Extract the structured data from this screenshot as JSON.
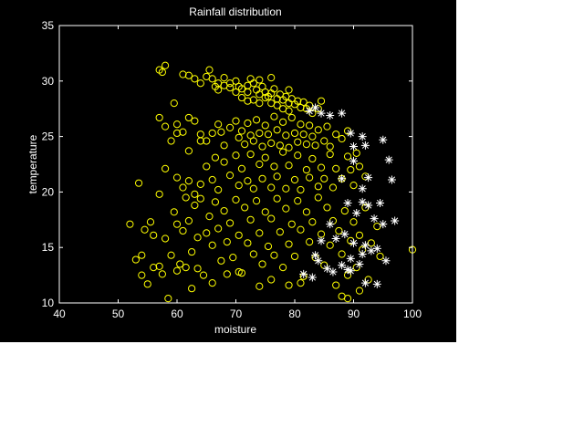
{
  "chart_data": {
    "type": "scatter",
    "title": "Rainfall distribution",
    "xlabel": "moisture",
    "ylabel": "temperature",
    "xlim": [
      40,
      100
    ],
    "ylim": [
      10,
      35
    ],
    "xticks": [
      40,
      50,
      60,
      70,
      80,
      90,
      100
    ],
    "yticks": [
      10,
      15,
      20,
      25,
      30,
      35
    ],
    "grid": false,
    "colors": {
      "background": "#000000",
      "axes": "#ffffff",
      "circle_series": "#ffff00",
      "star_series": "#ffffff"
    },
    "series": [
      {
        "marker": "circle",
        "color": "#ffff00",
        "points": [
          [
            57,
            31
          ],
          [
            58,
            31.4
          ],
          [
            57.5,
            30.8
          ],
          [
            61,
            30.6
          ],
          [
            62,
            30.5
          ],
          [
            63,
            30.2
          ],
          [
            64,
            29.8
          ],
          [
            65,
            30.4
          ],
          [
            65.5,
            31
          ],
          [
            66,
            30.2
          ],
          [
            66.5,
            29.5
          ],
          [
            67,
            29.2
          ],
          [
            68,
            30.3
          ],
          [
            69,
            29.8
          ],
          [
            70,
            30
          ],
          [
            70.5,
            29.5
          ],
          [
            71,
            29.3
          ],
          [
            72,
            29
          ],
          [
            72.5,
            30.2
          ],
          [
            73,
            29.8
          ],
          [
            73.5,
            29.2
          ],
          [
            74,
            28.8
          ],
          [
            74.5,
            29.5
          ],
          [
            75,
            29
          ],
          [
            75.5,
            28.6
          ],
          [
            76,
            28.9
          ],
          [
            76.5,
            29.3
          ],
          [
            77,
            28.4
          ],
          [
            77.5,
            28.8
          ],
          [
            78,
            28.3
          ],
          [
            78.5,
            28.6
          ],
          [
            79,
            28
          ],
          [
            79.5,
            28.4
          ],
          [
            80,
            27.9
          ],
          [
            80.5,
            28.2
          ],
          [
            81,
            27.6
          ],
          [
            81.5,
            28.1
          ],
          [
            82,
            27.5
          ],
          [
            82.5,
            27.8
          ],
          [
            83,
            27.1
          ],
          [
            84,
            27.5
          ],
          [
            84.5,
            28.2
          ],
          [
            73,
            28.3
          ],
          [
            74,
            28
          ],
          [
            75,
            28.5
          ],
          [
            76,
            28
          ],
          [
            77,
            27.8
          ],
          [
            78,
            27.5
          ],
          [
            79,
            27.3
          ],
          [
            71,
            28.5
          ],
          [
            72,
            28.2
          ],
          [
            70,
            29
          ],
          [
            69,
            29.4
          ],
          [
            68,
            29.6
          ],
          [
            67,
            29.8
          ],
          [
            76,
            30.3
          ],
          [
            74,
            30.1
          ],
          [
            72,
            29.6
          ],
          [
            79,
            29.2
          ],
          [
            57,
            26.7
          ],
          [
            58,
            25.9
          ],
          [
            59,
            24.6
          ],
          [
            60,
            26.1
          ],
          [
            61,
            25.4
          ],
          [
            62,
            26.7
          ],
          [
            64,
            25.2
          ],
          [
            65,
            24.6
          ],
          [
            66,
            25.3
          ],
          [
            67,
            26.1
          ],
          [
            67.5,
            25.4
          ],
          [
            68,
            24.2
          ],
          [
            69,
            25.8
          ],
          [
            70,
            26.4
          ],
          [
            70.5,
            24.9
          ],
          [
            71,
            25.5
          ],
          [
            71.5,
            24.3
          ],
          [
            72,
            26.2
          ],
          [
            72.5,
            25.1
          ],
          [
            73,
            24.6
          ],
          [
            73.5,
            26.5
          ],
          [
            74,
            25.3
          ],
          [
            74.5,
            24.1
          ],
          [
            75,
            26
          ],
          [
            75.5,
            25.2
          ],
          [
            76,
            24.4
          ],
          [
            76.5,
            26.8
          ],
          [
            77,
            25.6
          ],
          [
            77.5,
            24.2
          ],
          [
            78,
            26.3
          ],
          [
            78.5,
            25.1
          ],
          [
            79,
            24
          ],
          [
            79.5,
            26.7
          ],
          [
            80,
            25.3
          ],
          [
            80.5,
            24.5
          ],
          [
            81,
            26.1
          ],
          [
            81.5,
            25.2
          ],
          [
            82,
            24.3
          ],
          [
            82.5,
            26
          ],
          [
            83,
            25
          ],
          [
            83.5,
            24.2
          ],
          [
            84,
            25.6
          ],
          [
            85,
            24.6
          ],
          [
            85.5,
            25.9
          ],
          [
            86,
            24.1
          ],
          [
            87,
            25.2
          ],
          [
            88,
            24.8
          ],
          [
            89,
            25.5
          ],
          [
            58,
            22.1
          ],
          [
            60,
            21.3
          ],
          [
            61,
            20.4
          ],
          [
            62,
            21
          ],
          [
            63,
            19.8
          ],
          [
            64,
            20.7
          ],
          [
            65,
            22.3
          ],
          [
            66,
            21.1
          ],
          [
            66.5,
            23.1
          ],
          [
            67,
            20.2
          ],
          [
            68,
            22.7
          ],
          [
            69,
            21.5
          ],
          [
            70,
            23.3
          ],
          [
            70.5,
            20.6
          ],
          [
            71,
            22.1
          ],
          [
            72,
            21
          ],
          [
            72.5,
            23.4
          ],
          [
            73,
            20.3
          ],
          [
            74,
            22.5
          ],
          [
            74.5,
            21.2
          ],
          [
            75,
            23.1
          ],
          [
            76,
            20.4
          ],
          [
            76.5,
            22.3
          ],
          [
            77,
            21.4
          ],
          [
            78,
            23.6
          ],
          [
            78.5,
            20.3
          ],
          [
            79,
            22.4
          ],
          [
            80,
            21.1
          ],
          [
            80.5,
            23.3
          ],
          [
            81,
            20.2
          ],
          [
            82,
            22
          ],
          [
            82.5,
            21.3
          ],
          [
            83,
            23
          ],
          [
            84,
            20.5
          ],
          [
            84.5,
            22.2
          ],
          [
            85,
            21.2
          ],
          [
            86,
            23.4
          ],
          [
            86.5,
            20.4
          ],
          [
            87,
            22.1
          ],
          [
            88,
            21.2
          ],
          [
            89,
            23.2
          ],
          [
            90,
            20.6
          ],
          [
            91,
            22.3
          ],
          [
            92,
            21.4
          ],
          [
            89.5,
            22
          ],
          [
            90.5,
            23.5
          ],
          [
            52,
            17.1
          ],
          [
            53,
            13.9
          ],
          [
            54,
            12.5
          ],
          [
            54.5,
            16.6
          ],
          [
            55,
            11.7
          ],
          [
            55.5,
            17.3
          ],
          [
            56,
            13.2
          ],
          [
            57,
            19.8
          ],
          [
            57.5,
            12.6
          ],
          [
            58,
            15.8
          ],
          [
            58.5,
            10.4
          ],
          [
            59,
            14.3
          ],
          [
            59.5,
            18.2
          ],
          [
            60,
            12.9
          ],
          [
            61,
            16.5
          ],
          [
            61.5,
            13.2
          ],
          [
            62,
            17.4
          ],
          [
            62.5,
            14.6
          ],
          [
            63,
            18.8
          ],
          [
            63.5,
            15.9
          ],
          [
            64,
            19.4
          ],
          [
            65,
            16.3
          ],
          [
            65.5,
            17.8
          ],
          [
            66,
            15.2
          ],
          [
            66.5,
            19.1
          ],
          [
            67,
            16.7
          ],
          [
            67.5,
            13.8
          ],
          [
            68,
            18.3
          ],
          [
            68.5,
            15.5
          ],
          [
            69,
            17.2
          ],
          [
            69.5,
            14.1
          ],
          [
            70,
            19.3
          ],
          [
            70.5,
            16.1
          ],
          [
            71,
            12.7
          ],
          [
            71.5,
            18.6
          ],
          [
            72,
            15.4
          ],
          [
            72.5,
            17.5
          ],
          [
            73,
            14.4
          ],
          [
            73.5,
            19.2
          ],
          [
            74,
            16.3
          ],
          [
            74.5,
            13.5
          ],
          [
            75,
            18.2
          ],
          [
            75.5,
            15.1
          ],
          [
            76,
            17.6
          ],
          [
            76.5,
            14.3
          ],
          [
            77,
            19.4
          ],
          [
            77.5,
            16.4
          ],
          [
            78,
            13.2
          ],
          [
            78.5,
            18.5
          ],
          [
            79,
            15.3
          ],
          [
            79.5,
            17.1
          ],
          [
            80,
            14.2
          ],
          [
            80.5,
            19.2
          ],
          [
            81,
            16.6
          ],
          [
            81.5,
            12.4
          ],
          [
            82,
            18.2
          ],
          [
            82.5,
            15.5
          ],
          [
            83,
            17.3
          ],
          [
            83.5,
            14.1
          ],
          [
            84,
            19.5
          ],
          [
            84.5,
            16.2
          ],
          [
            85,
            13.4
          ],
          [
            85.5,
            18.6
          ],
          [
            86,
            15.2
          ],
          [
            86.5,
            17.4
          ],
          [
            87,
            11.6
          ],
          [
            87.5,
            16.5
          ],
          [
            88,
            14.4
          ],
          [
            88.5,
            18.3
          ],
          [
            89,
            12.5
          ],
          [
            89.5,
            15.6
          ],
          [
            90,
            17.3
          ],
          [
            90.5,
            13.2
          ],
          [
            91,
            16.1
          ],
          [
            91.5,
            14.8
          ],
          [
            92,
            18.6
          ],
          [
            92.5,
            12.1
          ],
          [
            93,
            15.4
          ],
          [
            94,
            16.9
          ],
          [
            94.5,
            14.2
          ],
          [
            100,
            14.8
          ],
          [
            88,
            10.6
          ],
          [
            89,
            10.4
          ],
          [
            91,
            11.1
          ],
          [
            60,
            17.1
          ],
          [
            60.5,
            13.5
          ],
          [
            61.5,
            19.5
          ],
          [
            62.5,
            11.3
          ],
          [
            63.5,
            13.1
          ],
          [
            64.5,
            12.5
          ],
          [
            66,
            11.8
          ],
          [
            68.5,
            12.6
          ],
          [
            70.5,
            12.8
          ],
          [
            74,
            11.5
          ],
          [
            76,
            12.1
          ],
          [
            79,
            11.6
          ],
          [
            81,
            11.8
          ],
          [
            57,
            13.3
          ],
          [
            56,
            16.1
          ],
          [
            54,
            14.3
          ],
          [
            53.5,
            20.8
          ],
          [
            64,
            24.6
          ],
          [
            62,
            23.7
          ],
          [
            60,
            25.3
          ],
          [
            59.5,
            28
          ],
          [
            63,
            26.4
          ]
        ]
      },
      {
        "marker": "star",
        "color": "#ffffff",
        "points": [
          [
            82.5,
            27.3
          ],
          [
            83.5,
            27.6
          ],
          [
            84.5,
            27.1
          ],
          [
            86,
            26.9
          ],
          [
            88,
            27.1
          ],
          [
            89.5,
            25.3
          ],
          [
            90,
            24.1
          ],
          [
            91.5,
            25
          ],
          [
            92,
            24.2
          ],
          [
            95,
            24.7
          ],
          [
            96,
            22.9
          ],
          [
            96.5,
            21.1
          ],
          [
            88,
            21.2
          ],
          [
            89,
            19
          ],
          [
            90.5,
            18.1
          ],
          [
            91.5,
            19.1
          ],
          [
            92.5,
            18.8
          ],
          [
            93.5,
            17.6
          ],
          [
            90,
            22.8
          ],
          [
            91.5,
            20.3
          ],
          [
            92.5,
            21.3
          ],
          [
            97,
            17.4
          ],
          [
            95,
            17.1
          ],
          [
            93,
            14.7
          ],
          [
            94,
            14.9
          ],
          [
            95.5,
            13.8
          ],
          [
            86,
            17.1
          ],
          [
            87,
            15.8
          ],
          [
            88.5,
            16.2
          ],
          [
            89.5,
            14
          ],
          [
            90,
            15.4
          ],
          [
            91,
            13.5
          ],
          [
            92,
            11.8
          ],
          [
            94,
            11.7
          ],
          [
            83.5,
            14.3
          ],
          [
            84.5,
            15.6
          ],
          [
            85.5,
            13.1
          ],
          [
            86.5,
            12.8
          ],
          [
            88,
            13.4
          ],
          [
            89,
            13
          ],
          [
            91.5,
            14.4
          ],
          [
            81.5,
            12.6
          ],
          [
            83,
            12.3
          ],
          [
            84,
            13.8
          ],
          [
            89.5,
            12.9
          ],
          [
            92,
            15.2
          ],
          [
            94.5,
            19
          ]
        ]
      }
    ]
  }
}
